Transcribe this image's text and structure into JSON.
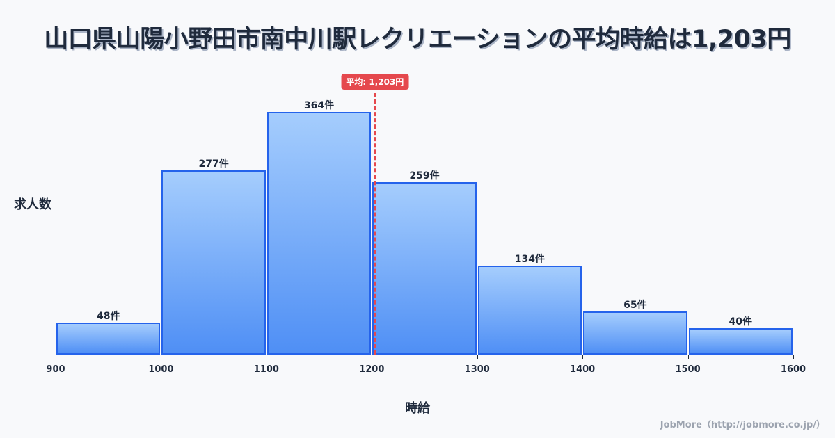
{
  "title": "山口県山陽小野田市南中川駅レクリエーションの平均時給は1,203円",
  "ylabel": "求人数",
  "xlabel": "時給",
  "credit": "JobMore（http://jobmore.co.jp/）",
  "mean": {
    "value": 1203,
    "label": "平均: 1,203円",
    "color": "#e5484d"
  },
  "colors": {
    "bar_border": "#2563eb",
    "bar_top": "#a5cdfd",
    "bar_bottom": "#4f8ff5"
  },
  "chart_data": {
    "type": "bar",
    "title": "山口県山陽小野田市南中川駅レクリエーションの平均時給は1,203円",
    "xlabel": "時給",
    "ylabel": "求人数",
    "categories": [
      "900-1000",
      "1000-1100",
      "1100-1200",
      "1200-1300",
      "1300-1400",
      "1400-1500",
      "1500-1600"
    ],
    "bin_edges": [
      900,
      1000,
      1100,
      1200,
      1300,
      1400,
      1500,
      1600
    ],
    "values": [
      48,
      277,
      364,
      259,
      134,
      65,
      40
    ],
    "value_labels": [
      "48件",
      "277件",
      "364件",
      "259件",
      "134件",
      "65件",
      "40件"
    ],
    "x_ticks": [
      "900",
      "1000",
      "1100",
      "1200",
      "1300",
      "1400",
      "1500",
      "1600"
    ],
    "xlim": [
      900,
      1600
    ],
    "ylim": [
      0,
      428
    ],
    "grid": true,
    "annotations": [
      {
        "type": "vline",
        "x": 1203,
        "label": "平均: 1,203円"
      }
    ]
  }
}
